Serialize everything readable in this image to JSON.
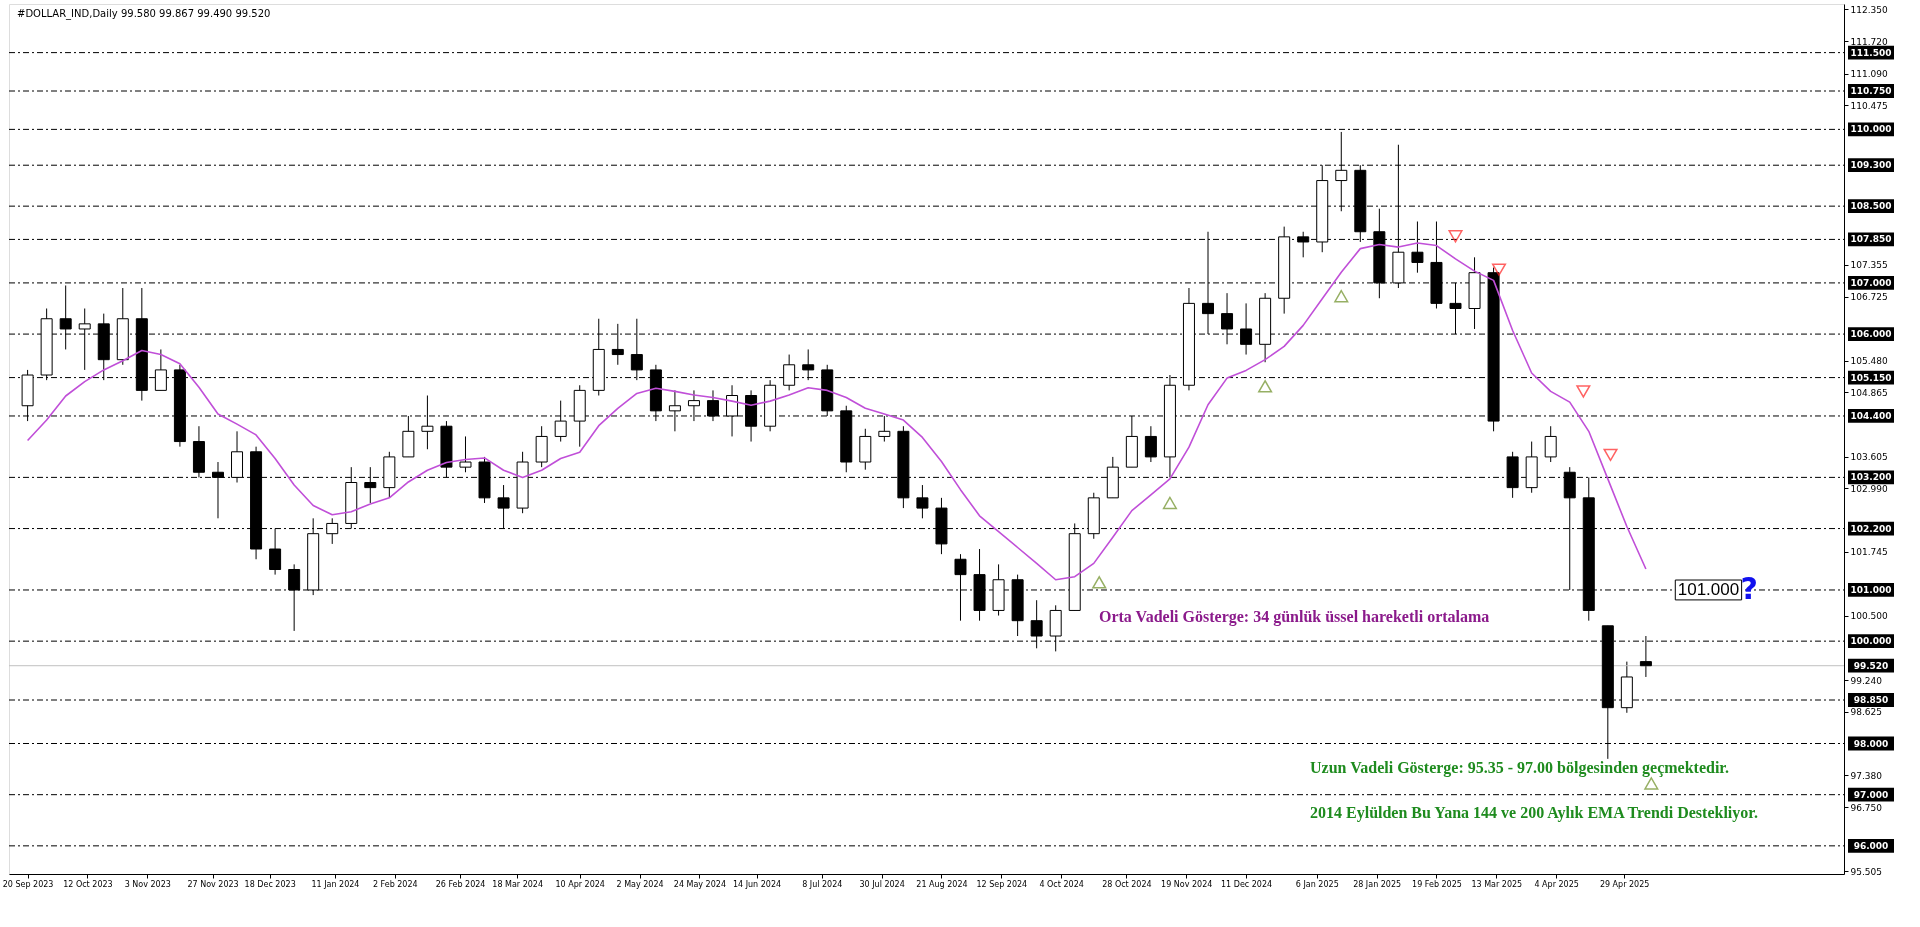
{
  "chart_data": {
    "type": "candlestick",
    "title": "#DOLLAR_IND,Daily  99.580 99.867 99.490 99.520",
    "color": "#000000",
    "x": [
      "2023-09-20",
      "2023-09-27",
      "2023-10-04",
      "2023-10-11",
      "2023-10-18",
      "2023-10-25",
      "2023-11-01",
      "2023-11-08",
      "2023-11-15",
      "2023-11-22",
      "2023-11-29",
      "2023-12-06",
      "2023-12-13",
      "2023-12-20",
      "2023-12-27",
      "2024-01-03",
      "2024-01-10",
      "2024-01-17",
      "2024-01-24",
      "2024-01-31",
      "2024-02-07",
      "2024-02-14",
      "2024-02-21",
      "2024-02-28",
      "2024-03-06",
      "2024-03-13",
      "2024-03-20",
      "2024-03-27",
      "2024-04-03",
      "2024-04-10",
      "2024-04-17",
      "2024-04-24",
      "2024-05-01",
      "2024-05-08",
      "2024-05-15",
      "2024-05-22",
      "2024-05-29",
      "2024-06-05",
      "2024-06-12",
      "2024-06-19",
      "2024-06-26",
      "2024-07-03",
      "2024-07-10",
      "2024-07-17",
      "2024-07-24",
      "2024-07-31",
      "2024-08-07",
      "2024-08-14",
      "2024-08-21",
      "2024-08-28",
      "2024-09-04",
      "2024-09-11",
      "2024-09-18",
      "2024-09-25",
      "2024-10-02",
      "2024-10-09",
      "2024-10-16",
      "2024-10-23",
      "2024-10-30",
      "2024-11-06",
      "2024-11-13",
      "2024-11-20",
      "2024-11-27",
      "2024-12-04",
      "2024-12-11",
      "2024-12-18",
      "2024-12-25",
      "2025-01-01",
      "2025-01-08",
      "2025-01-15",
      "2025-01-22",
      "2025-01-29",
      "2025-02-05",
      "2025-02-12",
      "2025-02-19",
      "2025-02-26",
      "2025-03-05",
      "2025-03-12",
      "2025-03-19",
      "2025-03-26",
      "2025-04-02",
      "2025-04-09",
      "2025-04-16",
      "2025-04-23",
      "2025-04-30",
      "2025-05-07"
    ],
    "ohlc": [
      [
        104.6,
        105.3,
        104.3,
        105.2
      ],
      [
        105.2,
        106.5,
        105.1,
        106.3
      ],
      [
        106.3,
        106.95,
        105.7,
        106.1
      ],
      [
        106.1,
        106.5,
        105.3,
        106.2
      ],
      [
        106.2,
        106.4,
        105.1,
        105.5
      ],
      [
        105.5,
        106.9,
        105.4,
        106.3
      ],
      [
        106.3,
        106.9,
        104.7,
        104.9
      ],
      [
        104.9,
        105.7,
        104.9,
        105.3
      ],
      [
        105.3,
        105.4,
        103.8,
        103.9
      ],
      [
        103.9,
        104.2,
        103.2,
        103.3
      ],
      [
        103.3,
        103.5,
        102.4,
        103.2
      ],
      [
        103.2,
        104.1,
        103.1,
        103.7
      ],
      [
        103.7,
        103.8,
        101.6,
        101.8
      ],
      [
        101.8,
        102.2,
        101.3,
        101.4
      ],
      [
        101.4,
        101.5,
        100.2,
        101.0
      ],
      [
        101.0,
        102.4,
        100.9,
        102.1
      ],
      [
        102.1,
        102.4,
        101.9,
        102.3
      ],
      [
        102.3,
        103.4,
        102.2,
        103.1
      ],
      [
        103.1,
        103.4,
        102.7,
        103.0
      ],
      [
        103.0,
        103.7,
        102.8,
        103.6
      ],
      [
        103.6,
        104.4,
        103.6,
        104.1
      ],
      [
        104.1,
        104.8,
        103.75,
        104.2
      ],
      [
        104.2,
        104.3,
        103.2,
        103.4
      ],
      [
        103.4,
        104.0,
        103.3,
        103.5
      ],
      [
        103.5,
        103.6,
        102.7,
        102.8
      ],
      [
        102.8,
        103.05,
        102.2,
        102.6
      ],
      [
        102.6,
        103.7,
        102.5,
        103.5
      ],
      [
        103.5,
        104.2,
        103.4,
        104.0
      ],
      [
        104.0,
        104.7,
        103.9,
        104.3
      ],
      [
        104.3,
        105.0,
        103.8,
        104.9
      ],
      [
        104.9,
        106.3,
        104.8,
        105.7
      ],
      [
        105.7,
        106.2,
        105.4,
        105.6
      ],
      [
        105.6,
        106.3,
        105.1,
        105.3
      ],
      [
        105.3,
        105.4,
        104.3,
        104.5
      ],
      [
        104.5,
        104.9,
        104.1,
        104.6
      ],
      [
        104.6,
        104.9,
        104.3,
        104.7
      ],
      [
        104.7,
        104.9,
        104.3,
        104.4
      ],
      [
        104.4,
        105.0,
        104.0,
        104.8
      ],
      [
        104.8,
        104.9,
        103.9,
        104.2
      ],
      [
        104.2,
        105.1,
        104.1,
        105.0
      ],
      [
        105.0,
        105.6,
        104.9,
        105.4
      ],
      [
        105.4,
        105.7,
        105.1,
        105.3
      ],
      [
        105.3,
        105.4,
        104.4,
        104.5
      ],
      [
        104.5,
        104.6,
        103.3,
        103.5
      ],
      [
        103.5,
        104.15,
        103.35,
        104.0
      ],
      [
        104.0,
        104.4,
        103.9,
        104.1
      ],
      [
        104.1,
        104.2,
        102.6,
        102.8
      ],
      [
        102.8,
        103.05,
        102.4,
        102.6
      ],
      [
        102.6,
        102.8,
        101.7,
        101.9
      ],
      [
        101.6,
        101.7,
        100.4,
        101.3
      ],
      [
        101.3,
        101.8,
        100.4,
        100.6
      ],
      [
        100.6,
        101.5,
        100.5,
        101.2
      ],
      [
        101.2,
        101.3,
        100.1,
        100.4
      ],
      [
        100.4,
        100.8,
        99.86,
        100.1
      ],
      [
        100.1,
        100.7,
        99.8,
        100.6
      ],
      [
        100.6,
        102.3,
        100.6,
        102.1
      ],
      [
        102.1,
        102.9,
        102.0,
        102.8
      ],
      [
        102.8,
        103.6,
        102.8,
        103.4
      ],
      [
        103.4,
        104.4,
        103.4,
        104.0
      ],
      [
        104.0,
        104.2,
        103.5,
        103.6
      ],
      [
        103.6,
        105.2,
        103.2,
        105.0
      ],
      [
        105.0,
        106.9,
        104.9,
        106.6
      ],
      [
        106.6,
        108.0,
        106.0,
        106.4
      ],
      [
        106.4,
        106.8,
        105.8,
        106.1
      ],
      [
        106.1,
        106.6,
        105.6,
        105.8
      ],
      [
        105.8,
        106.8,
        105.45,
        106.7
      ],
      [
        106.7,
        108.1,
        106.4,
        107.9
      ],
      [
        107.9,
        108.0,
        107.5,
        107.8
      ],
      [
        107.8,
        109.3,
        107.6,
        109.0
      ],
      [
        109.0,
        109.95,
        108.4,
        109.2
      ],
      [
        109.2,
        109.3,
        107.8,
        108.0
      ],
      [
        108.0,
        108.45,
        106.7,
        107.0
      ],
      [
        107.0,
        109.7,
        106.9,
        107.6
      ],
      [
        107.6,
        108.2,
        107.2,
        107.4
      ],
      [
        107.4,
        108.2,
        106.5,
        106.6
      ],
      [
        106.6,
        107.0,
        106.0,
        106.5
      ],
      [
        106.5,
        107.5,
        106.1,
        107.2
      ],
      [
        107.2,
        107.3,
        104.1,
        104.3
      ],
      [
        103.6,
        103.7,
        102.8,
        103.0
      ],
      [
        103.0,
        103.9,
        102.9,
        103.6
      ],
      [
        103.6,
        104.2,
        103.5,
        104.0
      ],
      [
        103.3,
        103.4,
        101.0,
        102.8
      ],
      [
        102.8,
        103.2,
        100.4,
        100.6
      ],
      [
        100.3,
        100.3,
        97.7,
        98.7
      ],
      [
        98.7,
        99.6,
        98.6,
        99.3
      ],
      [
        99.6,
        100.1,
        99.3,
        99.52
      ]
    ],
    "series": [
      {
        "type": "line",
        "color": "#c04fd8",
        "values": [
          103.92,
          104.32,
          104.79,
          105.07,
          105.3,
          105.48,
          105.68,
          105.6,
          105.42,
          104.96,
          104.44,
          104.24,
          104.03,
          103.57,
          103.05,
          102.65,
          102.47,
          102.53,
          102.68,
          102.8,
          103.11,
          103.34,
          103.49,
          103.55,
          103.58,
          103.34,
          103.2,
          103.34,
          103.57,
          103.69,
          104.21,
          104.55,
          104.84,
          104.94,
          104.88,
          104.81,
          104.76,
          104.69,
          104.61,
          104.69,
          104.81,
          104.95,
          104.9,
          104.76,
          104.55,
          104.44,
          104.32,
          103.98,
          103.51,
          102.96,
          102.45,
          102.14,
          101.83,
          101.52,
          101.2,
          101.26,
          101.52,
          102.03,
          102.55,
          102.86,
          103.17,
          103.79,
          104.62,
          105.14,
          105.29,
          105.5,
          105.76,
          106.17,
          106.69,
          107.21,
          107.67,
          107.75,
          107.7,
          107.78,
          107.73,
          107.47,
          107.23,
          107.05,
          106.07,
          105.24,
          104.88,
          104.67,
          104.1,
          103.17,
          102.24,
          101.41
        ]
      },
      {
        "type": "scatter",
        "marker": "triangle-up",
        "color": "#6b8e23",
        "x": [
          "2024-10-18",
          "2024-11-13",
          "2024-12-18",
          "2025-01-15",
          "2025-05-09"
        ],
        "values": [
          101.15,
          102.7,
          104.98,
          106.74,
          97.22
        ]
      },
      {
        "type": "scatter",
        "marker": "triangle-down",
        "color": "#ff2020",
        "x": [
          "2025-02-26",
          "2025-03-14",
          "2025-04-14",
          "2025-04-24"
        ],
        "values": [
          107.91,
          107.26,
          104.88,
          103.64
        ]
      }
    ],
    "xlim": [
      "2023-09-15",
      "2025-07-17"
    ],
    "xticks": [
      {
        "value": "2023-09-20",
        "label": "20 Sep 2023"
      },
      {
        "value": "2023-10-12",
        "label": "12 Oct 2023"
      },
      {
        "value": "2023-11-03",
        "label": "3 Nov 2023"
      },
      {
        "value": "2023-11-27",
        "label": "27 Nov 2023"
      },
      {
        "value": "2023-12-18",
        "label": "18 Dec 2023"
      },
      {
        "value": "2024-01-11",
        "label": "11 Jan 2024"
      },
      {
        "value": "2024-02-02",
        "label": "2 Feb 2024"
      },
      {
        "value": "2024-02-26",
        "label": "26 Feb 2024"
      },
      {
        "value": "2024-03-18",
        "label": "18 Mar 2024"
      },
      {
        "value": "2024-04-10",
        "label": "10 Apr 2024"
      },
      {
        "value": "2024-05-02",
        "label": "2 May 2024"
      },
      {
        "value": "2024-05-24",
        "label": "24 May 2024"
      },
      {
        "value": "2024-06-14",
        "label": "14 Jun 2024"
      },
      {
        "value": "2024-07-08",
        "label": "8 Jul 2024"
      },
      {
        "value": "2024-07-30",
        "label": "30 Jul 2024"
      },
      {
        "value": "2024-08-21",
        "label": "21 Aug 2024"
      },
      {
        "value": "2024-09-12",
        "label": "12 Sep 2024"
      },
      {
        "value": "2024-10-04",
        "label": "4 Oct 2024"
      },
      {
        "value": "2024-10-28",
        "label": "28 Oct 2024"
      },
      {
        "value": "2024-11-19",
        "label": "19 Nov 2024"
      },
      {
        "value": "2024-12-11",
        "label": "11 Dec 2024"
      },
      {
        "value": "2025-01-06",
        "label": "6 Jan 2025"
      },
      {
        "value": "2025-01-28",
        "label": "28 Jan 2025"
      },
      {
        "value": "2025-02-19",
        "label": "19 Feb 2025"
      },
      {
        "value": "2025-03-13",
        "label": "13 Mar 2025"
      },
      {
        "value": "2025-04-04",
        "label": "4 Apr 2025"
      },
      {
        "value": "2025-04-29",
        "label": "29 Apr 2025"
      }
    ],
    "ylim": [
      95.45,
      112.45
    ],
    "yticks": [
      {
        "value": 112.35,
        "label": "112.350"
      },
      {
        "value": 111.72,
        "label": "111.720"
      },
      {
        "value": 111.09,
        "label": "111.090"
      },
      {
        "value": 110.475,
        "label": "110.475"
      },
      {
        "value": 107.355,
        "label": "107.355"
      },
      {
        "value": 106.725,
        "label": "106.725"
      },
      {
        "value": 105.48,
        "label": "105.480"
      },
      {
        "value": 104.865,
        "label": "104.865"
      },
      {
        "value": 103.605,
        "label": "103.605"
      },
      {
        "value": 102.99,
        "label": "102.990"
      },
      {
        "value": 101.745,
        "label": "101.745"
      },
      {
        "value": 100.5,
        "label": "100.500"
      },
      {
        "value": 99.24,
        "label": "99.240"
      },
      {
        "value": 98.625,
        "label": "98.625"
      },
      {
        "value": 97.38,
        "label": "97.380"
      },
      {
        "value": 96.75,
        "label": "96.750"
      },
      {
        "value": 95.505,
        "label": "95.505"
      }
    ],
    "ref_lines": [
      {
        "axis": "y",
        "value": 111.5,
        "label": "111.500",
        "color": "#000000",
        "line_style": "dashed"
      },
      {
        "axis": "y",
        "value": 110.75,
        "label": "110.750",
        "color": "#000000",
        "line_style": "dashed"
      },
      {
        "axis": "y",
        "value": 110.0,
        "label": "110.000",
        "color": "#000000",
        "line_style": "dashed"
      },
      {
        "axis": "y",
        "value": 109.3,
        "label": "109.300",
        "color": "#000000",
        "line_style": "dashed"
      },
      {
        "axis": "y",
        "value": 108.5,
        "label": "108.500",
        "color": "#000000",
        "line_style": "dashed"
      },
      {
        "axis": "y",
        "value": 107.85,
        "label": "107.850",
        "color": "#000000",
        "line_style": "dashed"
      },
      {
        "axis": "y",
        "value": 107.0,
        "label": "107.000",
        "color": "#000000",
        "line_style": "dashed"
      },
      {
        "axis": "y",
        "value": 106.0,
        "label": "106.000",
        "color": "#000000",
        "line_style": "dashed"
      },
      {
        "axis": "y",
        "value": 105.15,
        "label": "105.150",
        "color": "#000000",
        "line_style": "dashed"
      },
      {
        "axis": "y",
        "value": 104.4,
        "label": "104.400",
        "color": "#000000",
        "line_style": "dashed"
      },
      {
        "axis": "y",
        "value": 103.2,
        "label": "103.200",
        "color": "#000000",
        "line_style": "dashed"
      },
      {
        "axis": "y",
        "value": 102.2,
        "label": "102.200",
        "color": "#000000",
        "line_style": "dashed"
      },
      {
        "axis": "y",
        "value": 101.0,
        "label": "101.000",
        "color": "#000000",
        "line_style": "dashed"
      },
      {
        "axis": "y",
        "value": 100.0,
        "label": "100.000",
        "color": "#000000",
        "line_style": "dashed"
      },
      {
        "axis": "y",
        "value": 99.52,
        "label": "99.520",
        "color": "#c0c0c0",
        "line_style": "solid"
      },
      {
        "axis": "y",
        "value": 98.85,
        "label": "98.850",
        "color": "#000000",
        "line_style": "dashed"
      },
      {
        "axis": "y",
        "value": 98.0,
        "label": "98.000",
        "color": "#000000",
        "line_style": "dashed"
      },
      {
        "axis": "y",
        "value": 97.0,
        "label": "97.000",
        "color": "#000000",
        "line_style": "dashed"
      },
      {
        "axis": "y",
        "value": 96.0,
        "label": "96.000",
        "color": "#000000",
        "line_style": "dashed"
      }
    ],
    "annotations": [
      "Orta Vadeli Gösterge: 34 günlük üssel hareketli ortalama",
      "Uzun Vadeli Gösterge: 95.35 - 97.00 bölgesinden geçmektedir.",
      "2014 Eylülden Bu Yana 144 ve 200 Aylık EMA Trendi Destekliyor.",
      {
        "text": "101.000",
        "x": "2025-05-30",
        "y": 101.0
      },
      {
        "text": "?",
        "x": "2025-06-14",
        "y": 101.0
      }
    ],
    "grid": false
  }
}
